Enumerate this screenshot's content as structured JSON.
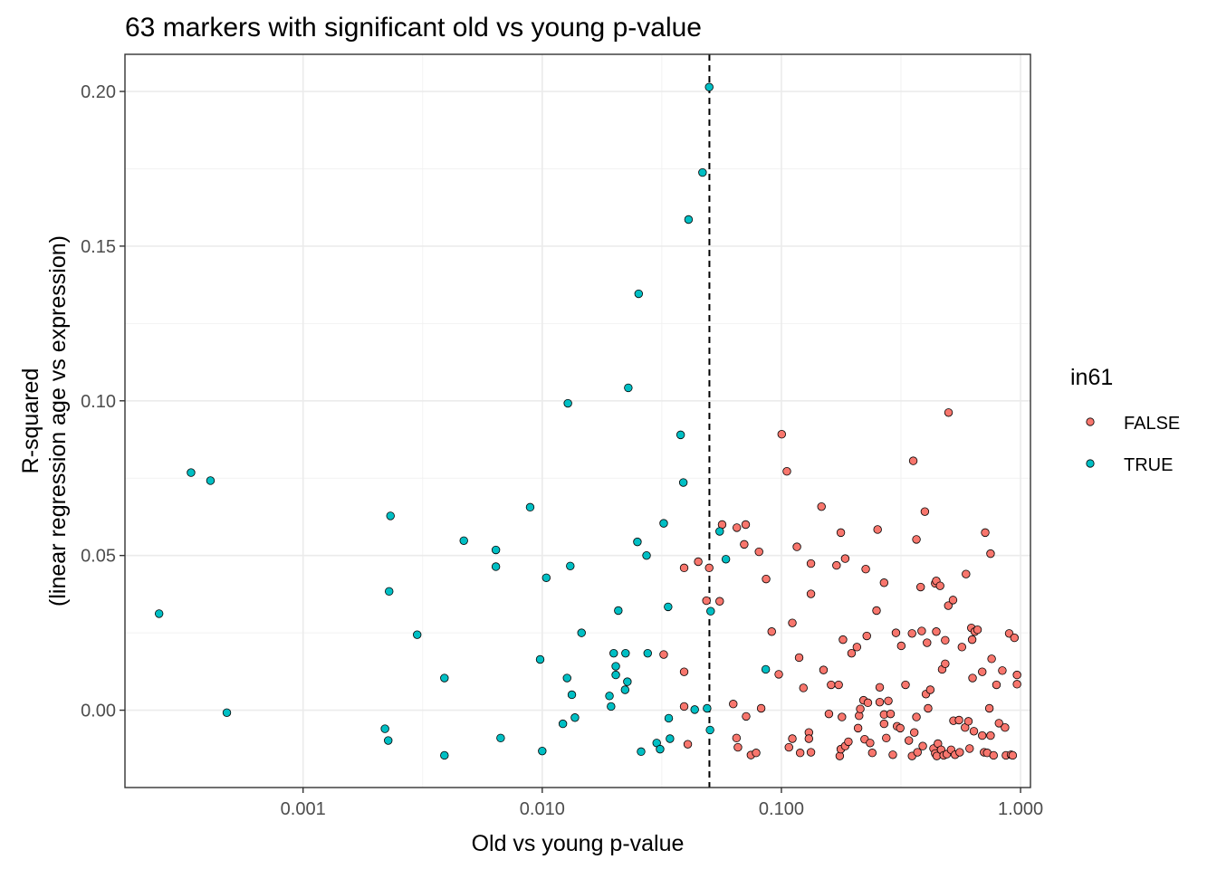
{
  "chart_data": {
    "type": "scatter",
    "title": "63 markers with significant old vs young p-value",
    "xlabel": "Old vs young p-value",
    "ylabel_lines": [
      "R-squared",
      "(linear regression age vs expression)"
    ],
    "x_scale": "log10",
    "xlim": [
      0.00018,
      1.1
    ],
    "ylim": [
      -0.025,
      0.212
    ],
    "x_ticks": [
      0.001,
      0.01,
      0.1,
      1
    ],
    "x_tick_labels": [
      "0.001",
      "0.010",
      "0.100",
      "1.000"
    ],
    "y_ticks": [
      0,
      0.05,
      0.1,
      0.15,
      0.2
    ],
    "y_tick_labels": [
      "0.00",
      "0.05",
      "0.10",
      "0.15",
      "0.20"
    ],
    "reference_line": {
      "axis": "x",
      "value": 0.05,
      "style": "dashed"
    },
    "grid": true,
    "legend": {
      "title": "in61",
      "placement": "right"
    },
    "series": [
      {
        "name": "FALSE",
        "color": "#F8766D",
        "points": [
          [
            0.0322,
            0.018
          ],
          [
            0.0392,
            0.0012
          ],
          [
            0.0406,
            -0.011
          ],
          [
            0.0392,
            0.046
          ],
          [
            0.0392,
            0.0124
          ],
          [
            0.0449,
            0.048
          ],
          [
            0.0486,
            0.0354
          ],
          [
            0.0499,
            0.046
          ],
          [
            0.0552,
            0.0352
          ],
          [
            0.0565,
            0.06
          ],
          [
            0.0629,
            0.002
          ],
          [
            0.0649,
            -0.009
          ],
          [
            0.0658,
            -0.012
          ],
          [
            0.0651,
            0.059
          ],
          [
            0.0699,
            0.0536
          ],
          [
            0.0709,
            0.06
          ],
          [
            0.0712,
            -0.002
          ],
          [
            0.0746,
            -0.0145
          ],
          [
            0.0784,
            -0.0138
          ],
          [
            0.0806,
            0.0512
          ],
          [
            0.0823,
            0.0006
          ],
          [
            0.0863,
            0.0424
          ],
          [
            0.0911,
            0.0254
          ],
          [
            0.0975,
            0.0116
          ],
          [
            0.1003,
            0.0892
          ],
          [
            0.1054,
            0.0772
          ],
          [
            0.1075,
            -0.012
          ],
          [
            0.1111,
            -0.0092
          ],
          [
            0.1111,
            0.0282
          ],
          [
            0.1161,
            0.0528
          ],
          [
            0.1186,
            0.017
          ],
          [
            0.1198,
            -0.0138
          ],
          [
            0.1236,
            0.0072
          ],
          [
            0.1303,
            -0.0072
          ],
          [
            0.1303,
            -0.0092
          ],
          [
            0.1329,
            -0.0136
          ],
          [
            0.1329,
            0.0376
          ],
          [
            0.1329,
            0.0474
          ],
          [
            0.1471,
            0.0658
          ],
          [
            0.15,
            0.013
          ],
          [
            0.158,
            -0.0012
          ],
          [
            0.1614,
            0.0082
          ],
          [
            0.17,
            0.0468
          ],
          [
            0.1735,
            0.0082
          ],
          [
            0.1754,
            -0.0148
          ],
          [
            0.1772,
            -0.0126
          ],
          [
            0.1772,
            0.0574
          ],
          [
            0.1791,
            -0.0022
          ],
          [
            0.1809,
            0.0228
          ],
          [
            0.1848,
            -0.0116
          ],
          [
            0.1848,
            0.049
          ],
          [
            0.1906,
            -0.0102
          ],
          [
            0.1965,
            0.0184
          ],
          [
            0.2069,
            0.0204
          ],
          [
            0.2092,
            -0.0058
          ],
          [
            0.2113,
            -0.0018
          ],
          [
            0.2137,
            0.0004
          ],
          [
            0.2205,
            0.0032
          ],
          [
            0.2228,
            -0.0094
          ],
          [
            0.2252,
            0.0456
          ],
          [
            0.2275,
            0.024
          ],
          [
            0.23,
            0.0024
          ],
          [
            0.2349,
            -0.0106
          ],
          [
            0.2399,
            -0.0138
          ],
          [
            0.2499,
            0.0322
          ],
          [
            0.2525,
            0.0584
          ],
          [
            0.2577,
            0.0074
          ],
          [
            0.2577,
            0.0026
          ],
          [
            0.2687,
            0.0412
          ],
          [
            0.2687,
            -0.0014
          ],
          [
            0.2687,
            -0.0044
          ],
          [
            0.2745,
            -0.009
          ],
          [
            0.28,
            0.003
          ],
          [
            0.2861,
            -0.0012
          ],
          [
            0.2923,
            -0.0144
          ],
          [
            0.3013,
            0.025
          ],
          [
            0.3045,
            -0.0052
          ],
          [
            0.314,
            -0.0058
          ],
          [
            0.3171,
            0.0208
          ],
          [
            0.3303,
            0.0082
          ],
          [
            0.3411,
            -0.0098
          ],
          [
            0.3517,
            0.0248
          ],
          [
            0.3517,
            -0.0148
          ],
          [
            0.3559,
            0.0806
          ],
          [
            0.3594,
            -0.0072
          ],
          [
            0.3669,
            0.0552
          ],
          [
            0.3669,
            -0.0022
          ],
          [
            0.3707,
            -0.0136
          ],
          [
            0.3821,
            0.0398
          ],
          [
            0.386,
            0.0256
          ],
          [
            0.39,
            -0.0116
          ],
          [
            0.398,
            0.0642
          ],
          [
            0.4021,
            0.0052
          ],
          [
            0.4064,
            0.0218
          ],
          [
            0.4106,
            0.0006
          ],
          [
            0.4193,
            0.0066
          ],
          [
            0.4326,
            -0.0124
          ],
          [
            0.4396,
            -0.014
          ],
          [
            0.4396,
            0.041
          ],
          [
            0.4442,
            0.0418
          ],
          [
            0.4442,
            0.0254
          ],
          [
            0.4464,
            -0.0148
          ],
          [
            0.4513,
            -0.0108
          ],
          [
            0.4608,
            0.0402
          ],
          [
            0.4655,
            -0.0128
          ],
          [
            0.4699,
            0.0132
          ],
          [
            0.4769,
            -0.0146
          ],
          [
            0.4841,
            0.015
          ],
          [
            0.4841,
            0.0226
          ],
          [
            0.4915,
            -0.0142
          ],
          [
            0.4987,
            0.0338
          ],
          [
            0.4999,
            0.0962
          ],
          [
            0.5123,
            -0.0128
          ],
          [
            0.5219,
            0.0356
          ],
          [
            0.5242,
            -0.0034
          ],
          [
            0.5322,
            -0.0144
          ],
          [
            0.5528,
            -0.0032
          ],
          [
            0.5565,
            -0.0136
          ],
          [
            0.5686,
            0.0204
          ],
          [
            0.586,
            -0.0056
          ],
          [
            0.5914,
            0.044
          ],
          [
            0.6053,
            -0.0036
          ],
          [
            0.6122,
            -0.0124
          ],
          [
            0.6227,
            0.0266
          ],
          [
            0.6274,
            0.0228
          ],
          [
            0.6298,
            0.0104
          ],
          [
            0.6379,
            -0.0068
          ],
          [
            0.6437,
            0.0254
          ],
          [
            0.6608,
            0.026
          ],
          [
            0.6914,
            0.0124
          ],
          [
            0.6915,
            -0.0082
          ],
          [
            0.7039,
            -0.0136
          ],
          [
            0.7115,
            0.0574
          ],
          [
            0.7253,
            -0.0138
          ],
          [
            0.7407,
            0.0006
          ],
          [
            0.7491,
            -0.0082
          ],
          [
            0.7491,
            0.0506
          ],
          [
            0.7568,
            0.0166
          ],
          [
            0.7712,
            -0.0146
          ],
          [
            0.793,
            0.0082
          ],
          [
            0.8124,
            -0.0042
          ],
          [
            0.839,
            0.0128
          ],
          [
            0.8611,
            -0.0056
          ],
          [
            0.8687,
            -0.0146
          ],
          [
            0.8963,
            0.0248
          ],
          [
            0.9127,
            -0.0144
          ],
          [
            0.9271,
            -0.0146
          ],
          [
            0.9426,
            0.0234
          ],
          [
            0.9664,
            0.0114
          ],
          [
            0.9664,
            0.0084
          ]
        ]
      },
      {
        "name": "TRUE",
        "color": "#00BFC4",
        "points": [
          [
            0.00025,
            0.0312
          ],
          [
            0.00034,
            0.0768
          ],
          [
            0.00041,
            0.0742
          ],
          [
            0.00048,
            -0.0008
          ],
          [
            0.0022,
            -0.006
          ],
          [
            0.00227,
            -0.0098
          ],
          [
            0.00229,
            0.0384
          ],
          [
            0.00232,
            0.0628
          ],
          [
            0.003,
            0.0244
          ],
          [
            0.0039,
            0.0104
          ],
          [
            0.0039,
            -0.0146
          ],
          [
            0.0047,
            0.0548
          ],
          [
            0.0064,
            0.0518
          ],
          [
            0.0064,
            0.0464
          ],
          [
            0.0067,
            -0.009
          ],
          [
            0.0089,
            0.0656
          ],
          [
            0.0098,
            0.0164
          ],
          [
            0.01,
            -0.0132
          ],
          [
            0.0104,
            0.0428
          ],
          [
            0.0122,
            -0.0044
          ],
          [
            0.0127,
            0.0104
          ],
          [
            0.0128,
            0.0992
          ],
          [
            0.0131,
            0.0466
          ],
          [
            0.0133,
            0.005
          ],
          [
            0.0137,
            -0.0024
          ],
          [
            0.0146,
            0.025
          ],
          [
            0.0191,
            0.0046
          ],
          [
            0.0194,
            0.0012
          ],
          [
            0.0199,
            0.0184
          ],
          [
            0.0203,
            0.0142
          ],
          [
            0.0203,
            0.0114
          ],
          [
            0.0208,
            0.0322
          ],
          [
            0.0222,
            0.0066
          ],
          [
            0.0223,
            0.0184
          ],
          [
            0.0227,
            0.0092
          ],
          [
            0.0229,
            0.1042
          ],
          [
            0.025,
            0.0544
          ],
          [
            0.0253,
            0.1346
          ],
          [
            0.0259,
            -0.0134
          ],
          [
            0.0273,
            0.05
          ],
          [
            0.0276,
            0.0184
          ],
          [
            0.0301,
            -0.0106
          ],
          [
            0.0311,
            -0.0126
          ],
          [
            0.0322,
            0.0604
          ],
          [
            0.0336,
            0.0334
          ],
          [
            0.0338,
            -0.0026
          ],
          [
            0.0342,
            -0.0092
          ],
          [
            0.0379,
            0.089
          ],
          [
            0.0389,
            0.0736
          ],
          [
            0.0409,
            0.1586
          ],
          [
            0.0434,
            0.0002
          ],
          [
            0.0468,
            0.1738
          ],
          [
            0.0489,
            0.0006
          ],
          [
            0.0499,
            0.2014
          ],
          [
            0.0503,
            -0.0064
          ],
          [
            0.0506,
            0.032
          ],
          [
            0.0552,
            0.0578
          ],
          [
            0.0586,
            0.0488
          ],
          [
            0.086,
            0.0132
          ]
        ]
      }
    ]
  }
}
